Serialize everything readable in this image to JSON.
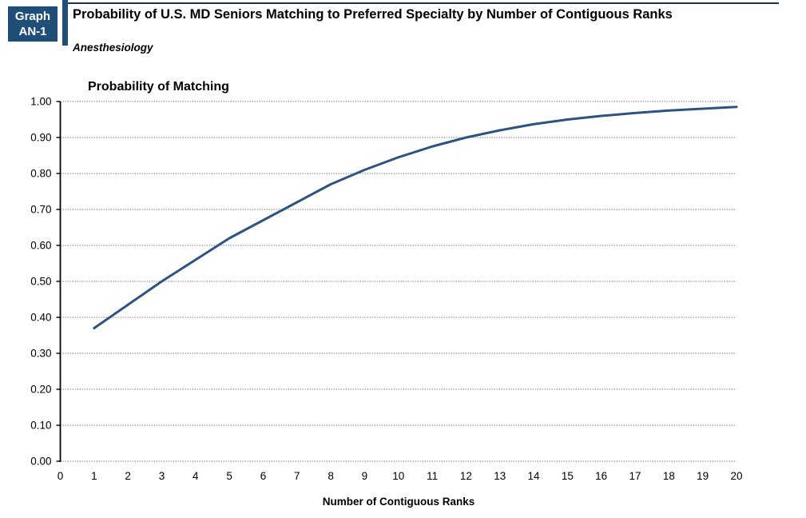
{
  "header": {
    "badge_line1": "Graph",
    "badge_line2": "AN-1",
    "title": "Probability of U.S. MD Seniors Matching to Preferred Specialty by Number of Contiguous Ranks",
    "subtitle": "Anesthesiology",
    "badge_color": "#1F4E79",
    "rule_color": "#17365D"
  },
  "chart_data": {
    "type": "line",
    "title": "Probability of Matching",
    "xlabel": "Number of Contiguous Ranks",
    "ylabel": "",
    "x": [
      1,
      2,
      3,
      4,
      5,
      6,
      7,
      8,
      9,
      10,
      11,
      12,
      13,
      14,
      15,
      16,
      17,
      18,
      19,
      20
    ],
    "values": [
      0.37,
      0.435,
      0.5,
      0.56,
      0.62,
      0.67,
      0.72,
      0.77,
      0.81,
      0.845,
      0.875,
      0.9,
      0.92,
      0.937,
      0.95,
      0.96,
      0.968,
      0.975,
      0.98,
      0.985
    ],
    "xlim": [
      0,
      20
    ],
    "ylim": [
      0,
      1
    ],
    "xticks": [
      0,
      1,
      2,
      3,
      4,
      5,
      6,
      7,
      8,
      9,
      10,
      11,
      12,
      13,
      14,
      15,
      16,
      17,
      18,
      19,
      20
    ],
    "yticks": [
      0,
      0.1,
      0.2,
      0.3,
      0.4,
      0.5,
      0.6,
      0.7,
      0.8,
      0.9,
      1.0
    ],
    "ytick_format_decimals": 2,
    "grid": true,
    "legend": "none",
    "line_color": "#2E5380",
    "grid_color": "#808080",
    "axis_color": "#000000"
  }
}
